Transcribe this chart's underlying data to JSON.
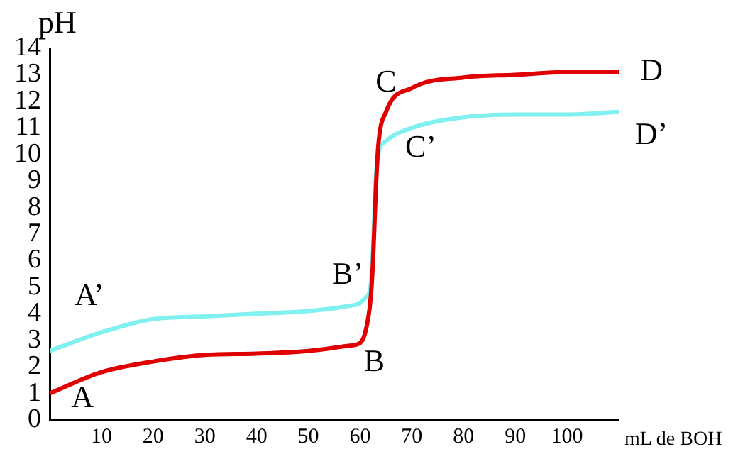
{
  "chart_data": {
    "type": "line",
    "xlabel": "mL de BOH",
    "ylabel": "pH",
    "xlim": [
      0,
      110
    ],
    "xticks": [
      10,
      20,
      30,
      40,
      50,
      60,
      70,
      80,
      90,
      100
    ],
    "ylim": [
      0,
      14
    ],
    "yticks": [
      0,
      1,
      2,
      3,
      4,
      5,
      6,
      7,
      8,
      9,
      10,
      11,
      12,
      13,
      14
    ],
    "grid": false,
    "legend": false,
    "marker": "none",
    "series": [
      {
        "color": "#e00000",
        "x": [
          0,
          10,
          20,
          30,
          40,
          50,
          58,
          60,
          61,
          62,
          62.5,
          63,
          63.5,
          65,
          70,
          80,
          90,
          100,
          110
        ],
        "values": [
          1.0,
          1.8,
          2.2,
          2.45,
          2.5,
          2.6,
          2.8,
          2.9,
          3.3,
          4.5,
          6.0,
          8.5,
          10.3,
          11.6,
          12.5,
          12.9,
          13.0,
          13.1,
          13.1
        ]
      },
      {
        "color": "#80f0f0",
        "x": [
          0,
          10,
          20,
          30,
          40,
          50,
          58,
          60,
          61,
          62,
          62.5,
          63,
          63.5,
          65,
          70,
          80,
          90,
          100,
          110
        ],
        "values": [
          2.6,
          3.3,
          3.8,
          3.9,
          4.0,
          4.1,
          4.3,
          4.4,
          4.6,
          5.0,
          6.5,
          9.0,
          10.0,
          10.5,
          11.0,
          11.4,
          11.5,
          11.5,
          11.6
        ]
      }
    ],
    "annotations": [
      {
        "text": "A",
        "x": 0,
        "y": 1.0
      },
      {
        "text": "A’",
        "x": 0,
        "y": 2.6
      },
      {
        "text": "B",
        "x": 60,
        "y": 2.9
      },
      {
        "text": "B’",
        "x": 62,
        "y": 5.0
      },
      {
        "text": "C",
        "x": 65,
        "y": 11.6
      },
      {
        "text": "C’",
        "x": 63.5,
        "y": 10.0
      },
      {
        "text": "D",
        "x": 110,
        "y": 13.1
      },
      {
        "text": "D’",
        "x": 110,
        "y": 11.6
      }
    ]
  }
}
